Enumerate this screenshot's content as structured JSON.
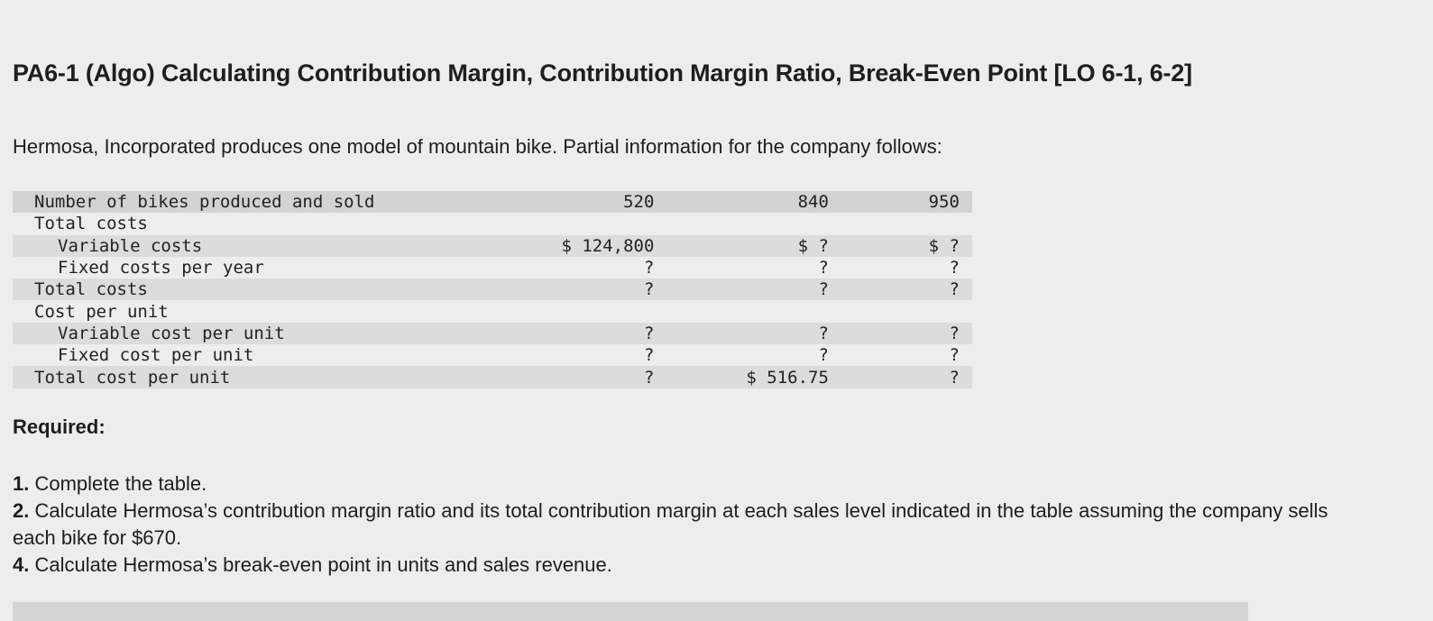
{
  "title": "PA6-1 (Algo) Calculating Contribution Margin, Contribution Margin Ratio, Break-Even Point [LO 6-1, 6-2]",
  "intro": "Hermosa, Incorporated produces one model of mountain bike. Partial information for the company follows:",
  "table": {
    "rows": [
      {
        "label": "Number of bikes produced and sold",
        "c1": "520",
        "c2": "840",
        "c3": "950"
      },
      {
        "label": "Total costs",
        "c1": "",
        "c2": "",
        "c3": ""
      },
      {
        "label": "Variable costs",
        "c1": "$ 124,800",
        "c2": "$ ?",
        "c3": "$ ?"
      },
      {
        "label": "Fixed costs per year",
        "c1": "?",
        "c2": "?",
        "c3": "?"
      },
      {
        "label": "Total costs",
        "c1": "?",
        "c2": "?",
        "c3": "?"
      },
      {
        "label": "Cost per unit",
        "c1": "",
        "c2": "",
        "c3": ""
      },
      {
        "label": "Variable cost per unit",
        "c1": "?",
        "c2": "?",
        "c3": "?"
      },
      {
        "label": "Fixed cost per unit",
        "c1": "?",
        "c2": "?",
        "c3": "?"
      },
      {
        "label": "Total cost per unit",
        "c1": "?",
        "c2": "$ 516.75",
        "c3": "?"
      }
    ]
  },
  "required_label": "Required:",
  "tasks": [
    {
      "num": "1.",
      "text": "Complete the table."
    },
    {
      "num": "2.",
      "text": "Calculate Hermosa’s contribution margin ratio and its total contribution margin at each sales level indicated in the table assuming the company sells each bike for $670."
    },
    {
      "num": "4.",
      "text": "Calculate Hermosa’s break-even point in units and sales revenue."
    }
  ]
}
